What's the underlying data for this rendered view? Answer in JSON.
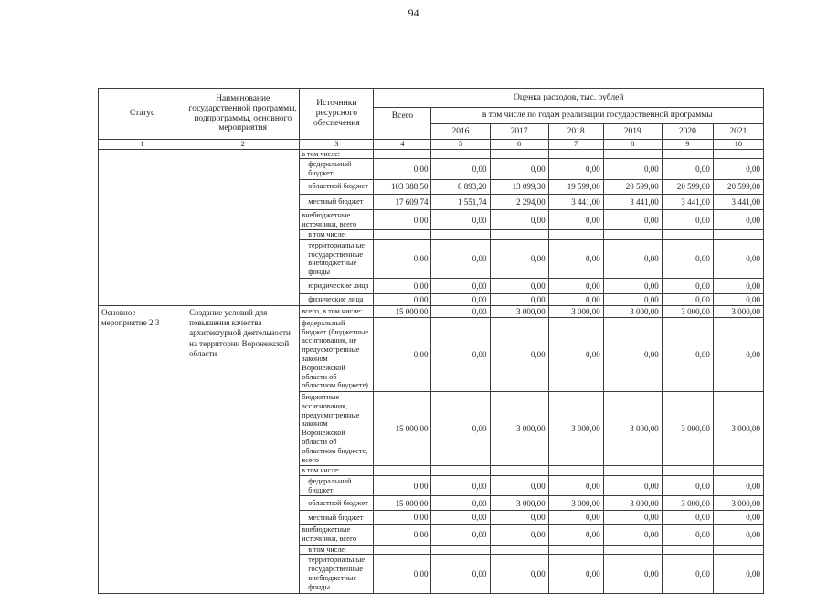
{
  "page_number": "94",
  "table": {
    "header": {
      "status": "Статус",
      "program_name": "Наименование государственной программы, подпрограммы, основного мероприятия",
      "sources": "Источники ресурсного обеспечения",
      "expense_estimate": "Оценка расходов, тыс. рублей",
      "total": "Всего",
      "by_years": "в том числе по годам реализации государственной программы",
      "years": [
        "2016",
        "2017",
        "2018",
        "2019",
        "2020",
        "2021"
      ],
      "column_numbers": [
        "1",
        "2",
        "3",
        "4",
        "5",
        "6",
        "7",
        "8",
        "9",
        "10"
      ]
    },
    "blocks": [
      {
        "status": "",
        "program_name": "",
        "rows": [
          {
            "label": "в том числе:",
            "indent": 0,
            "subheader": true,
            "values": [
              "",
              "",
              "",
              "",
              "",
              "",
              ""
            ]
          },
          {
            "label": "федеральный бюджет",
            "indent": 1,
            "subheader": false,
            "values": [
              "0,00",
              "0,00",
              "0,00",
              "0,00",
              "0,00",
              "0,00",
              "0,00"
            ]
          },
          {
            "label": "областной бюджет",
            "indent": 1,
            "subheader": false,
            "values": [
              "103 388,50",
              "8 893,20",
              "13 099,30",
              "19 599,00",
              "20 599,00",
              "20 599,00",
              "20 599,00"
            ]
          },
          {
            "label": "местный бюджет",
            "indent": 1,
            "subheader": false,
            "values": [
              "17 609,74",
              "1 551,74",
              "2 294,00",
              "3 441,00",
              "3 441,00",
              "3 441,00",
              "3 441,00"
            ]
          },
          {
            "label": "внебюджетные источники, всего",
            "indent": 0,
            "subheader": false,
            "values": [
              "0,00",
              "0,00",
              "0,00",
              "0,00",
              "0,00",
              "0,00",
              "0,00"
            ]
          },
          {
            "label": "в том числе:",
            "indent": 1,
            "subheader": true,
            "values": [
              "",
              "",
              "",
              "",
              "",
              "",
              ""
            ]
          },
          {
            "label": "территориальные государственные внебюджетные фонды",
            "indent": 1,
            "subheader": false,
            "values": [
              "0,00",
              "0,00",
              "0,00",
              "0,00",
              "0,00",
              "0,00",
              "0,00"
            ]
          },
          {
            "label": "юридические лица",
            "indent": 1,
            "subheader": false,
            "values": [
              "0,00",
              "0,00",
              "0,00",
              "0,00",
              "0,00",
              "0,00",
              "0,00"
            ]
          },
          {
            "label": "физические лица",
            "indent": 1,
            "subheader": false,
            "values": [
              "0,00",
              "0,00",
              "0,00",
              "0,00",
              "0,00",
              "0,00",
              "0,00"
            ]
          }
        ]
      },
      {
        "status": "Основное мероприятие 2.3",
        "program_name": "Создание условий для повышения качества архитектурной деятельности на территории Воронежской области",
        "rows": [
          {
            "label": "всего, в том числе:",
            "indent": 0,
            "subheader": false,
            "values": [
              "15 000,00",
              "0,00",
              "3 000,00",
              "3 000,00",
              "3 000,00",
              "3 000,00",
              "3 000,00"
            ]
          },
          {
            "label": "федеральный бюджет (бюджетные ассигнования, не предусмотренные законом Воронежской области об областном бюджете)",
            "indent": 0,
            "subheader": false,
            "values": [
              "0,00",
              "0,00",
              "0,00",
              "0,00",
              "0,00",
              "0,00",
              "0,00"
            ]
          },
          {
            "label": "бюджетные ассигнования, предусмотренные законом Воронежской области об областном бюджете, всего",
            "indent": 0,
            "subheader": false,
            "values": [
              "15 000,00",
              "0,00",
              "3 000,00",
              "3 000,00",
              "3 000,00",
              "3 000,00",
              "3 000,00"
            ]
          },
          {
            "label": "в том числе:",
            "indent": 0,
            "subheader": true,
            "values": [
              "",
              "",
              "",
              "",
              "",
              "",
              ""
            ]
          },
          {
            "label": "федеральный бюджет",
            "indent": 1,
            "subheader": false,
            "values": [
              "0,00",
              "0,00",
              "0,00",
              "0,00",
              "0,00",
              "0,00",
              "0,00"
            ]
          },
          {
            "label": "областной бюджет",
            "indent": 1,
            "subheader": false,
            "values": [
              "15 000,00",
              "0,00",
              "3 000,00",
              "3 000,00",
              "3 000,00",
              "3 000,00",
              "3 000,00"
            ]
          },
          {
            "label": "местный бюджет",
            "indent": 1,
            "subheader": false,
            "values": [
              "0,00",
              "0,00",
              "0,00",
              "0,00",
              "0,00",
              "0,00",
              "0,00"
            ]
          },
          {
            "label": "внебюджетные источники, всего",
            "indent": 0,
            "subheader": false,
            "values": [
              "0,00",
              "0,00",
              "0,00",
              "0,00",
              "0,00",
              "0,00",
              "0,00"
            ]
          },
          {
            "label": "в том числе:",
            "indent": 1,
            "subheader": true,
            "values": [
              "",
              "",
              "",
              "",
              "",
              "",
              ""
            ]
          },
          {
            "label": "территориальные государственные внебюджетные фонды",
            "indent": 1,
            "subheader": false,
            "values": [
              "0,00",
              "0,00",
              "0,00",
              "0,00",
              "0,00",
              "0,00",
              "0,00"
            ]
          }
        ]
      }
    ]
  }
}
